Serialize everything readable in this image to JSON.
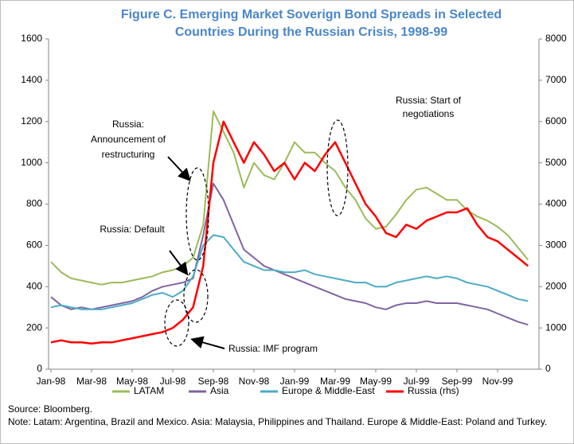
{
  "chart_data": {
    "type": "line",
    "title": [
      "Figure C. Emerging Market Soverign Bond Spreads in Selected",
      "Countries During the Russian Crisis, 1998-99"
    ],
    "categories": [
      "Jan-98",
      null,
      null,
      null,
      "Mar-98",
      null,
      null,
      null,
      "May-98",
      null,
      null,
      null,
      "Jul-98",
      null,
      null,
      null,
      "Sep-98",
      null,
      null,
      null,
      "Nov-98",
      null,
      null,
      null,
      "Jan-99",
      null,
      null,
      null,
      "Mar-99",
      null,
      null,
      null,
      "May-99",
      null,
      null,
      null,
      "Jul-99",
      null,
      null,
      null,
      "Sep-99",
      null,
      null,
      null,
      "Nov-99",
      null,
      null,
      null
    ],
    "ylim": [
      0,
      1600
    ],
    "yticks": [
      0,
      200,
      400,
      600,
      800,
      1000,
      1200,
      1400,
      1600
    ],
    "y2lim": [
      0,
      8000
    ],
    "y2ticks": [
      0,
      1000,
      2000,
      3000,
      4000,
      5000,
      6000,
      7000,
      8000
    ],
    "legend": "bottom",
    "series": [
      {
        "name": "LATAM",
        "color": "#9bbb59",
        "values": [
          520,
          470,
          440,
          430,
          420,
          410,
          420,
          420,
          430,
          440,
          450,
          470,
          480,
          500,
          540,
          700,
          1250,
          1150,
          1050,
          880,
          1000,
          940,
          920,
          1000,
          1100,
          1050,
          1050,
          1000,
          960,
          880,
          820,
          730,
          680,
          690,
          750,
          820,
          870,
          880,
          850,
          820,
          820,
          770,
          740,
          720,
          690,
          650,
          590,
          530
        ]
      },
      {
        "name": "Asia",
        "color": "#8064a2",
        "values": [
          350,
          310,
          290,
          300,
          290,
          300,
          310,
          320,
          330,
          350,
          380,
          400,
          410,
          420,
          440,
          650,
          900,
          820,
          700,
          580,
          540,
          500,
          480,
          460,
          440,
          420,
          400,
          380,
          360,
          340,
          330,
          320,
          300,
          290,
          310,
          320,
          320,
          330,
          320,
          320,
          320,
          310,
          300,
          290,
          270,
          250,
          230,
          215
        ]
      },
      {
        "name": "Europe & Middle-East",
        "color": "#4bacc6",
        "values": [
          300,
          310,
          300,
          290,
          290,
          290,
          300,
          310,
          320,
          340,
          360,
          370,
          350,
          380,
          450,
          600,
          650,
          640,
          580,
          520,
          500,
          480,
          480,
          470,
          470,
          480,
          460,
          450,
          440,
          430,
          420,
          420,
          400,
          400,
          420,
          430,
          440,
          450,
          440,
          450,
          440,
          420,
          410,
          400,
          380,
          360,
          340,
          330
        ]
      },
      {
        "name": "Russia (rhs)",
        "color": "#ff0000",
        "axis": "y2",
        "values": [
          650,
          700,
          650,
          650,
          620,
          650,
          650,
          700,
          750,
          800,
          850,
          900,
          1000,
          1200,
          1500,
          2500,
          5000,
          6000,
          5500,
          5000,
          5500,
          5200,
          4800,
          5000,
          4600,
          5000,
          4800,
          5200,
          5500,
          5000,
          4500,
          4000,
          3700,
          3300,
          3200,
          3500,
          3400,
          3600,
          3700,
          3800,
          3800,
          3900,
          3500,
          3200,
          3100,
          2900,
          2700,
          2500
        ]
      }
    ],
    "annotations": [
      [
        "Russia: Start of",
        "negotiations"
      ],
      [
        "Russia:",
        "Announcement of",
        "restructuring"
      ],
      [
        "Russia: Default"
      ],
      [
        "Russia: IMF program"
      ]
    ],
    "source": "Source: Bloomberg.",
    "note": "Note: Latam: Argentina, Brazil and Mexico. Asia: Malaysia, Philippines and Thailand. Europe & Middle-East: Poland and Turkey."
  }
}
